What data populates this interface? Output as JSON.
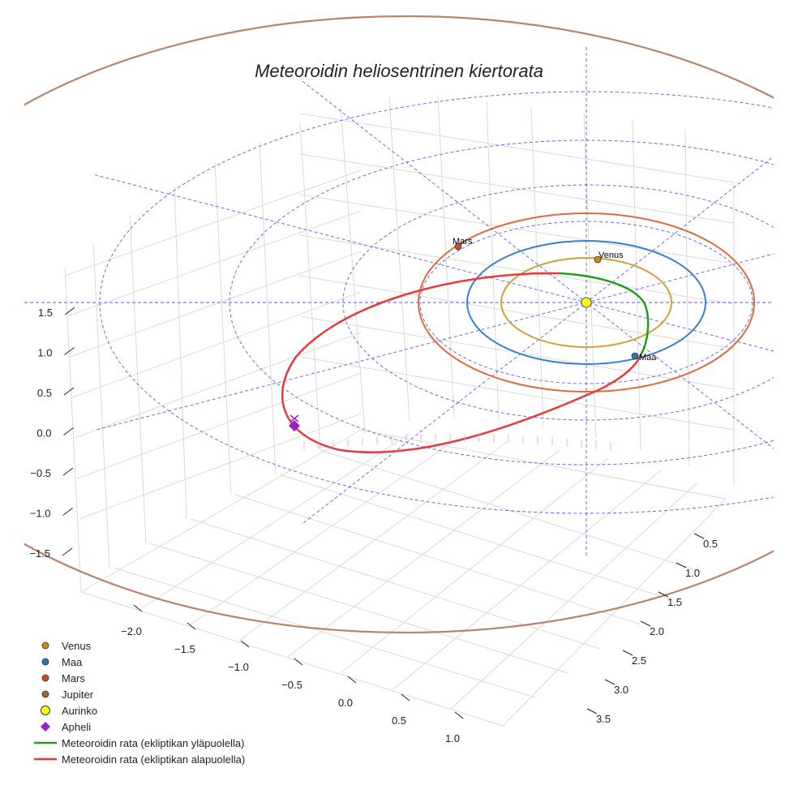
{
  "chart_data": {
    "type": "3d-orbit",
    "title": "Meteoroidin heliosentrinen kiertorata",
    "axes": {
      "x_ticks": [
        "0.5",
        "1.0",
        "1.5",
        "2.0",
        "2.5",
        "3.0",
        "3.5"
      ],
      "y_ticks": [
        "−2.0",
        "−1.5",
        "−1.0",
        "−0.5",
        "0.0",
        "0.5",
        "1.0"
      ],
      "z_ticks": [
        "1.5",
        "1.0",
        "0.5",
        "0.0",
        "−0.5",
        "−1.0",
        "−1.5"
      ]
    },
    "planets": [
      {
        "name": "Venus",
        "orbit_radius_au": 0.72,
        "color": "#d4a038"
      },
      {
        "name": "Maa",
        "orbit_radius_au": 1.0,
        "color": "#3a7fd0"
      },
      {
        "name": "Mars",
        "orbit_radius_au": 1.52,
        "color": "#e06a40"
      },
      {
        "name": "Jupiter",
        "orbit_radius_au": 5.2,
        "color": "#b8856a"
      }
    ],
    "planet_labels": [
      "Venus",
      "Maa",
      "Mars"
    ],
    "sun": {
      "name": "Aurinko",
      "color": "#ffff00"
    },
    "aphelion": {
      "name": "Apheli",
      "color": "#9b20c8"
    },
    "meteoroid_orbit": {
      "above_label": "Meteoroidin rata (ekliptikan yläpuolella)",
      "above_color": "#1f9e1f",
      "below_label": "Meteoroidin rata (ekliptikan alapuolella)",
      "below_color": "#e83a3a"
    }
  },
  "legend": [
    {
      "label": "Venus",
      "kind": "dot",
      "color": "#d0871a"
    },
    {
      "label": "Maa",
      "kind": "dot",
      "color": "#2478b4"
    },
    {
      "label": "Mars",
      "kind": "dot",
      "color": "#c8501e"
    },
    {
      "label": "Jupiter",
      "kind": "dot",
      "color": "#a8602e"
    },
    {
      "label": "Aurinko",
      "kind": "bigdot",
      "color": "#ffff00"
    },
    {
      "label": "Apheli",
      "kind": "diamond",
      "color": "#9b20c8"
    },
    {
      "label": "Meteoroidin rata (ekliptikan yläpuolella)",
      "kind": "line",
      "color": "#1f9e1f"
    },
    {
      "label": "Meteoroidin rata (ekliptikan alapuolella)",
      "kind": "line",
      "color": "#e83a3a"
    }
  ]
}
